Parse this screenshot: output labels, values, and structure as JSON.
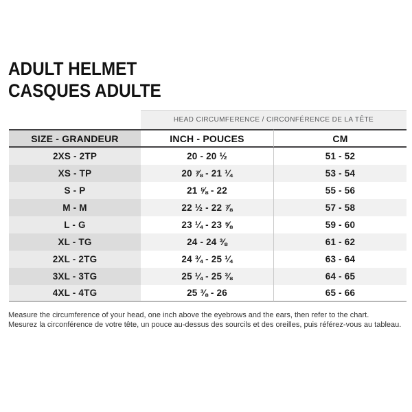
{
  "title": {
    "line1": "ADULT HELMET",
    "line2": "CASQUES ADULTE"
  },
  "table": {
    "span_header": "HEAD CIRCUMFERENCE / CIRCONFÉRENCE DE LA TÊTE",
    "columns": [
      "SIZE - GRANDEUR",
      "INCH - POUCES",
      "CM"
    ],
    "rows": [
      {
        "size": "2XS - 2TP",
        "inch": "20 - 20 ½",
        "cm": "51 - 52"
      },
      {
        "size": "XS - TP",
        "inch": "20 ⅞ - 21 ¼",
        "cm": "53 - 54"
      },
      {
        "size": "S - P",
        "inch": "21 ⅝ - 22",
        "cm": "55 - 56"
      },
      {
        "size": "M - M",
        "inch": "22 ½ - 22 ⅞",
        "cm": "57 - 58"
      },
      {
        "size": "L - G",
        "inch": "23 ¼ - 23 ⅝",
        "cm": "59 - 60"
      },
      {
        "size": "XL - TG",
        "inch": "24 - 24 ⅜",
        "cm": "61 - 62"
      },
      {
        "size": "2XL - 2TG",
        "inch": "24 ¾ - 25 ¼",
        "cm": "63 - 64"
      },
      {
        "size": "3XL - 3TG",
        "inch": "25 ¼ - 25 ⅜",
        "cm": "64 - 65"
      },
      {
        "size": "4XL - 4TG",
        "inch": "25 ⅜ - 26",
        "cm": "65 - 66"
      }
    ]
  },
  "footer": {
    "line1": "Measure the circumference of your head, one inch above the eyebrows and the ears, then refer to the chart.",
    "line2": "Mesurez la circonférence de votre tête, un pouce au-dessus des sourcils et des oreilles, puis référez-vous au tableau."
  },
  "colors": {
    "band_bg": "#efefef",
    "header_col1_bg": "#d9d9d9",
    "col1_row_bg": "#eaeaea",
    "col1_row_alt_bg": "#dcdcdc",
    "row_alt_bg": "#f1f1f1",
    "border_dark": "#414042",
    "border_bottom": "#b7b7b7",
    "divider": "#c9c9c9"
  }
}
